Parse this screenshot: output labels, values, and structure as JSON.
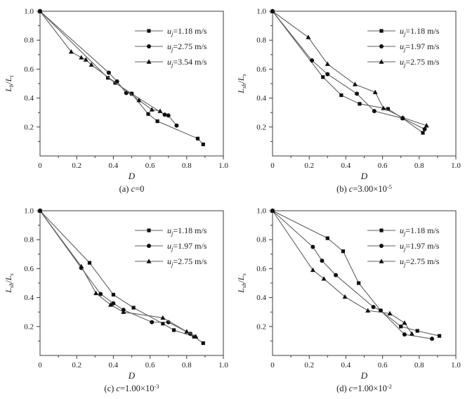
{
  "figure": {
    "background": "#ffffff",
    "description": "Four-panel line/scatter figure of breakup length ratio versus D at different concentrations c"
  },
  "styles": {
    "line_color": "#5f5f5f",
    "marker_color": "#101010",
    "axis_color": "#3c3c3c",
    "text_color": "#1a1a1a"
  },
  "chart_data": [
    {
      "type": "line",
      "panel": "a",
      "caption": "(a) c=0",
      "xlabel": "D",
      "ylabel": "L_b/L_i",
      "xlim": [
        0,
        1.0
      ],
      "ylim": [
        0,
        1.0
      ],
      "xticks": [
        "0",
        "0.2",
        "0.4",
        "0.6",
        "0.8",
        "1.0"
      ],
      "yticks": [
        "0.2",
        "0.4",
        "0.6",
        "0.8",
        "1.0"
      ],
      "grid": false,
      "legend_position": "top-right",
      "series": [
        {
          "name": "u_j=1.18 m/s",
          "marker": "square",
          "points": [
            [
              0,
              1.0
            ],
            [
              0.37,
              0.54
            ],
            [
              0.41,
              0.505
            ],
            [
              0.5,
              0.43
            ],
            [
              0.59,
              0.29
            ],
            [
              0.64,
              0.24
            ],
            [
              0.86,
              0.12
            ],
            [
              0.89,
              0.08
            ]
          ]
        },
        {
          "name": "u_j=2.75 m/s",
          "marker": "circle",
          "points": [
            [
              0,
              1.0
            ],
            [
              0.375,
              0.575
            ],
            [
              0.42,
              0.515
            ],
            [
              0.47,
              0.435
            ],
            [
              0.5,
              0.43
            ],
            [
              0.68,
              0.285
            ],
            [
              0.7,
              0.28
            ],
            [
              0.745,
              0.21
            ]
          ]
        },
        {
          "name": "u_j=3.54 m/s",
          "marker": "triangle",
          "points": [
            [
              0,
              1.0
            ],
            [
              0.17,
              0.72
            ],
            [
              0.225,
              0.68
            ],
            [
              0.25,
              0.665
            ],
            [
              0.28,
              0.63
            ],
            [
              0.54,
              0.385
            ],
            [
              0.61,
              0.32
            ],
            [
              0.655,
              0.31
            ]
          ]
        }
      ]
    },
    {
      "type": "line",
      "panel": "b",
      "caption": "(b) c=3.00×10^-5",
      "xlabel": "D",
      "ylabel": "L_sb/L_s",
      "xlim": [
        0,
        1.0
      ],
      "ylim": [
        0,
        1.0
      ],
      "xticks": [
        "0",
        "0.2",
        "0.4",
        "0.6",
        "0.8",
        "1.0"
      ],
      "yticks": [
        "0.2",
        "0.4",
        "0.6",
        "0.8",
        "1.0"
      ],
      "grid": false,
      "legend_position": "top-right",
      "series": [
        {
          "name": "u_j=1.18 m/s",
          "marker": "square",
          "points": [
            [
              0,
              1.0
            ],
            [
              0.275,
              0.545
            ],
            [
              0.375,
              0.42
            ],
            [
              0.475,
              0.36
            ],
            [
              0.63,
              0.325
            ],
            [
              0.71,
              0.26
            ],
            [
              0.82,
              0.16
            ]
          ]
        },
        {
          "name": "u_j=1.97 m/s",
          "marker": "circle",
          "points": [
            [
              0,
              1.0
            ],
            [
              0.215,
              0.66
            ],
            [
              0.3,
              0.565
            ],
            [
              0.46,
              0.43
            ],
            [
              0.555,
              0.31
            ],
            [
              0.71,
              0.26
            ],
            [
              0.83,
              0.185
            ]
          ]
        },
        {
          "name": "u_j=2.75 m/s",
          "marker": "triangle",
          "points": [
            [
              0,
              1.0
            ],
            [
              0.195,
              0.82
            ],
            [
              0.3,
              0.635
            ],
            [
              0.45,
              0.495
            ],
            [
              0.56,
              0.44
            ],
            [
              0.605,
              0.33
            ],
            [
              0.71,
              0.265
            ],
            [
              0.84,
              0.21
            ]
          ]
        }
      ]
    },
    {
      "type": "line",
      "panel": "c",
      "caption": "(c) c=1.00×10^-3",
      "xlabel": "D",
      "ylabel": "L_sb/L_s",
      "xlim": [
        0,
        1.0
      ],
      "ylim": [
        0,
        1.0
      ],
      "xticks": [
        "0",
        "0.2",
        "0.4",
        "0.6",
        "0.8",
        "1.0"
      ],
      "yticks": [
        "0.2",
        "0.4",
        "0.6",
        "0.8",
        "1.0"
      ],
      "grid": false,
      "legend_position": "top-right",
      "series": [
        {
          "name": "u_j=1.18 m/s",
          "marker": "square",
          "points": [
            [
              0,
              1.0
            ],
            [
              0.27,
              0.64
            ],
            [
              0.4,
              0.42
            ],
            [
              0.51,
              0.33
            ],
            [
              0.67,
              0.22
            ],
            [
              0.73,
              0.175
            ],
            [
              0.84,
              0.13
            ],
            [
              0.89,
              0.085
            ]
          ]
        },
        {
          "name": "u_j=1.97 m/s",
          "marker": "circle",
          "points": [
            [
              0,
              1.0
            ],
            [
              0.225,
              0.605
            ],
            [
              0.33,
              0.425
            ],
            [
              0.4,
              0.36
            ],
            [
              0.455,
              0.315
            ],
            [
              0.61,
              0.23
            ],
            [
              0.7,
              0.23
            ],
            [
              0.82,
              0.15
            ]
          ]
        },
        {
          "name": "u_j=2.75 m/s",
          "marker": "triangle",
          "points": [
            [
              0,
              1.0
            ],
            [
              0.225,
              0.615
            ],
            [
              0.305,
              0.43
            ],
            [
              0.385,
              0.35
            ],
            [
              0.455,
              0.3
            ],
            [
              0.67,
              0.26
            ],
            [
              0.8,
              0.165
            ],
            [
              0.85,
              0.13
            ]
          ]
        }
      ]
    },
    {
      "type": "line",
      "panel": "d",
      "caption": "(d) c=1.00×10^-2",
      "xlabel": "D",
      "ylabel": "L_sb/L_s",
      "xlim": [
        0,
        1.0
      ],
      "ylim": [
        0,
        1.0
      ],
      "xticks": [
        "0",
        "0.2",
        "0.4",
        "0.6",
        "0.8",
        "1.0"
      ],
      "yticks": [
        "0.2",
        "0.4",
        "0.6",
        "0.8",
        "1.0"
      ],
      "grid": false,
      "legend_position": "top-right",
      "series": [
        {
          "name": "u_j=1.18 m/s",
          "marker": "square",
          "points": [
            [
              0,
              1.0
            ],
            [
              0.3,
              0.81
            ],
            [
              0.385,
              0.72
            ],
            [
              0.47,
              0.5
            ],
            [
              0.59,
              0.31
            ],
            [
              0.7,
              0.2
            ],
            [
              0.79,
              0.17
            ],
            [
              0.91,
              0.135
            ]
          ]
        },
        {
          "name": "u_j=1.97 m/s",
          "marker": "circle",
          "points": [
            [
              0,
              1.0
            ],
            [
              0.22,
              0.75
            ],
            [
              0.27,
              0.655
            ],
            [
              0.345,
              0.555
            ],
            [
              0.55,
              0.335
            ],
            [
              0.59,
              0.31
            ],
            [
              0.72,
              0.145
            ],
            [
              0.87,
              0.115
            ]
          ]
        },
        {
          "name": "u_j=2.75 m/s",
          "marker": "triangle",
          "points": [
            [
              0,
              1.0
            ],
            [
              0.22,
              0.59
            ],
            [
              0.28,
              0.53
            ],
            [
              0.395,
              0.405
            ],
            [
              0.52,
              0.31
            ],
            [
              0.64,
              0.29
            ],
            [
              0.72,
              0.225
            ],
            [
              0.76,
              0.15
            ]
          ]
        }
      ]
    }
  ]
}
